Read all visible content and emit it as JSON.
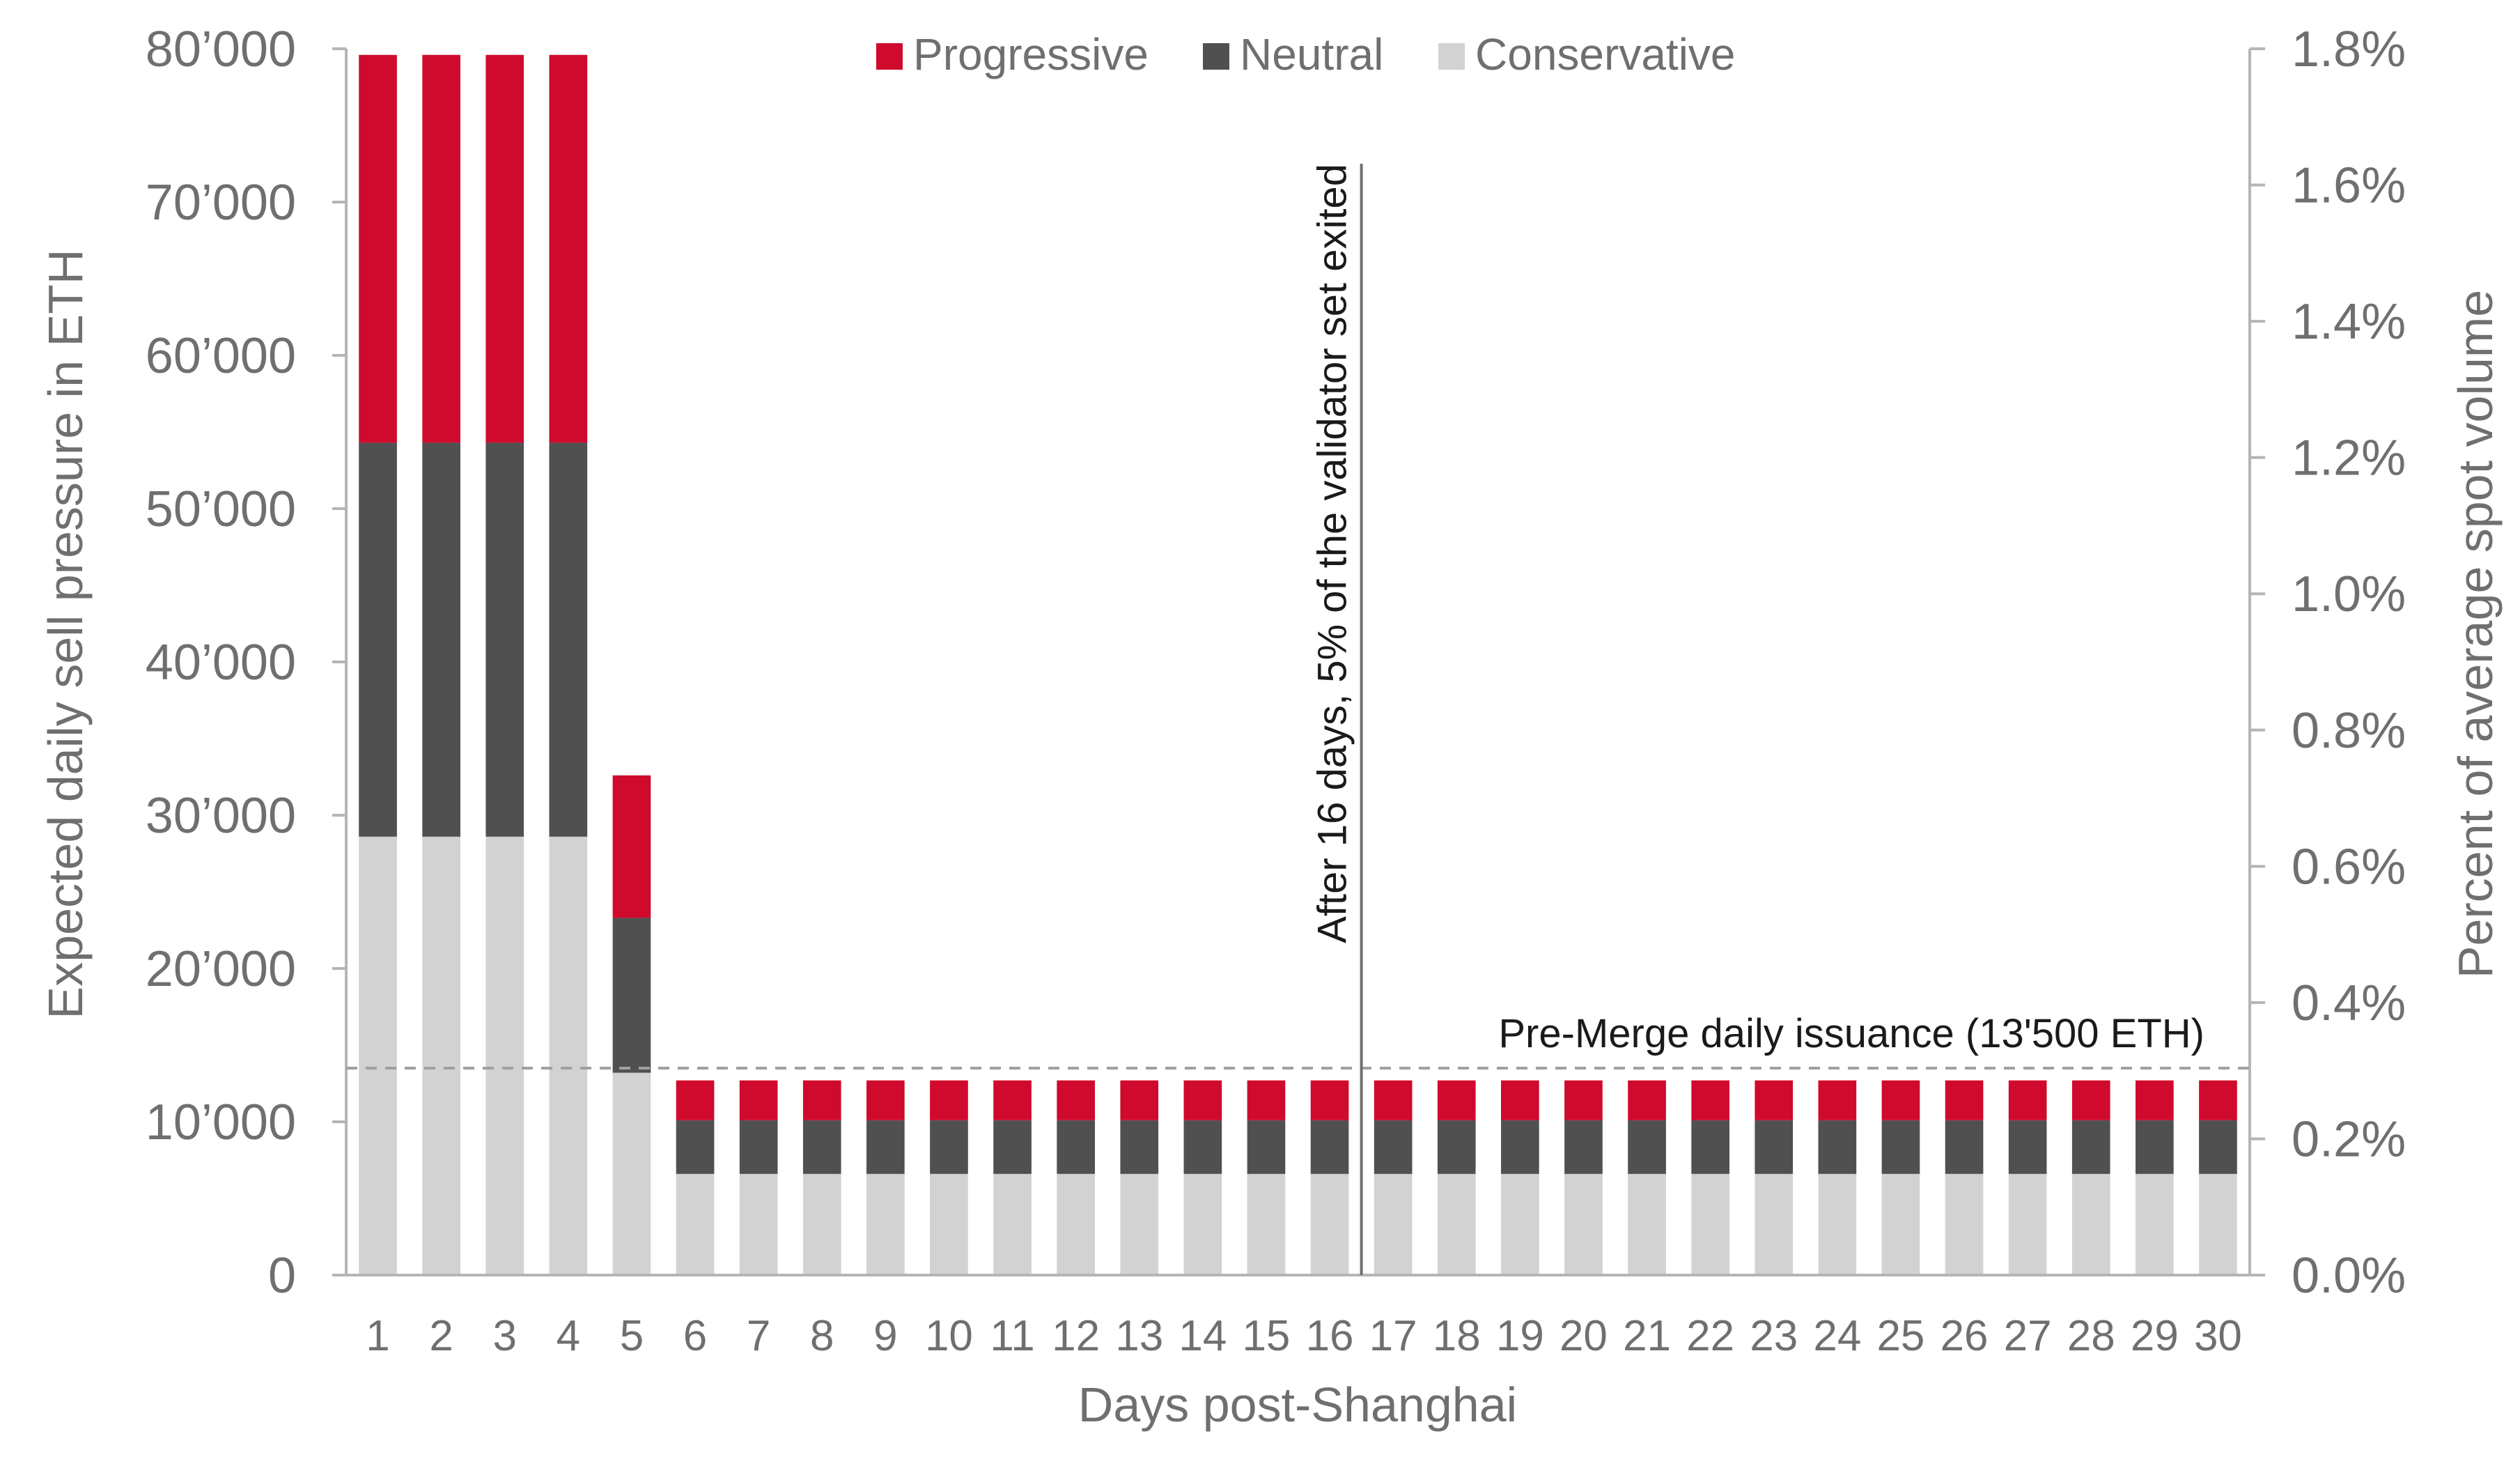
{
  "chart_data": {
    "type": "bar",
    "stacked": true,
    "categories": [
      "1",
      "2",
      "3",
      "4",
      "5",
      "6",
      "7",
      "8",
      "9",
      "10",
      "11",
      "12",
      "13",
      "14",
      "15",
      "16",
      "17",
      "18",
      "19",
      "20",
      "21",
      "22",
      "23",
      "24",
      "25",
      "26",
      "27",
      "28",
      "29",
      "30"
    ],
    "series": [
      {
        "name": "Conservative",
        "color": "#d3d2d3",
        "values": [
          28600,
          28600,
          28600,
          28600,
          13200,
          6600,
          6600,
          6600,
          6600,
          6600,
          6600,
          6600,
          6600,
          6600,
          6600,
          6600,
          6600,
          6600,
          6600,
          6600,
          6600,
          6600,
          6600,
          6600,
          6600,
          6600,
          6600,
          6600,
          6600,
          6600
        ]
      },
      {
        "name": "Neutral",
        "color": "#505050",
        "values": [
          25700,
          25700,
          25700,
          25700,
          10100,
          3500,
          3500,
          3500,
          3500,
          3500,
          3500,
          3500,
          3500,
          3500,
          3500,
          3500,
          3500,
          3500,
          3500,
          3500,
          3500,
          3500,
          3500,
          3500,
          3500,
          3500,
          3500,
          3500,
          3500,
          3500
        ]
      },
      {
        "name": "Progressive",
        "color": "#cf0a2c",
        "values": [
          25300,
          25300,
          25300,
          25300,
          9300,
          2600,
          2600,
          2600,
          2600,
          2600,
          2600,
          2600,
          2600,
          2600,
          2600,
          2600,
          2600,
          2600,
          2600,
          2600,
          2600,
          2600,
          2600,
          2600,
          2600,
          2600,
          2600,
          2600,
          2600,
          2600
        ]
      }
    ],
    "legend_order": [
      "Progressive",
      "Neutral",
      "Conservative"
    ],
    "legend_position": "top-center",
    "xlabel": "Days post-Shanghai",
    "ylabel": "Expected daily sell pressure in ETH",
    "y2label": "Percent of average spot volume",
    "ylim": [
      0,
      80000
    ],
    "yticks": [
      0,
      10000,
      20000,
      30000,
      40000,
      50000,
      60000,
      70000,
      80000
    ],
    "ytick_labels": [
      "0",
      "10’000",
      "20’000",
      "30’000",
      "40’000",
      "50’000",
      "60’000",
      "70’000",
      "80’000"
    ],
    "y2lim": [
      0,
      1.8
    ],
    "y2ticks": [
      0,
      0.2,
      0.4,
      0.6,
      0.8,
      1.0,
      1.2,
      1.4,
      1.6,
      1.8
    ],
    "y2tick_labels": [
      "0.0%",
      "0.2%",
      "0.4%",
      "0.6%",
      "0.8%",
      "1.0%",
      "1.2%",
      "1.4%",
      "1.6%",
      "1.8%"
    ],
    "grid": false,
    "reference_line": {
      "y": 13500,
      "style": "dashed",
      "color": "#a0a0a0",
      "label": "Pre-Merge daily issuance (13'500 ETH)"
    },
    "vertical_marker": {
      "after_category": "16",
      "y_top": 72500,
      "label": "After 16 days, 5% of the validator set exited"
    }
  }
}
